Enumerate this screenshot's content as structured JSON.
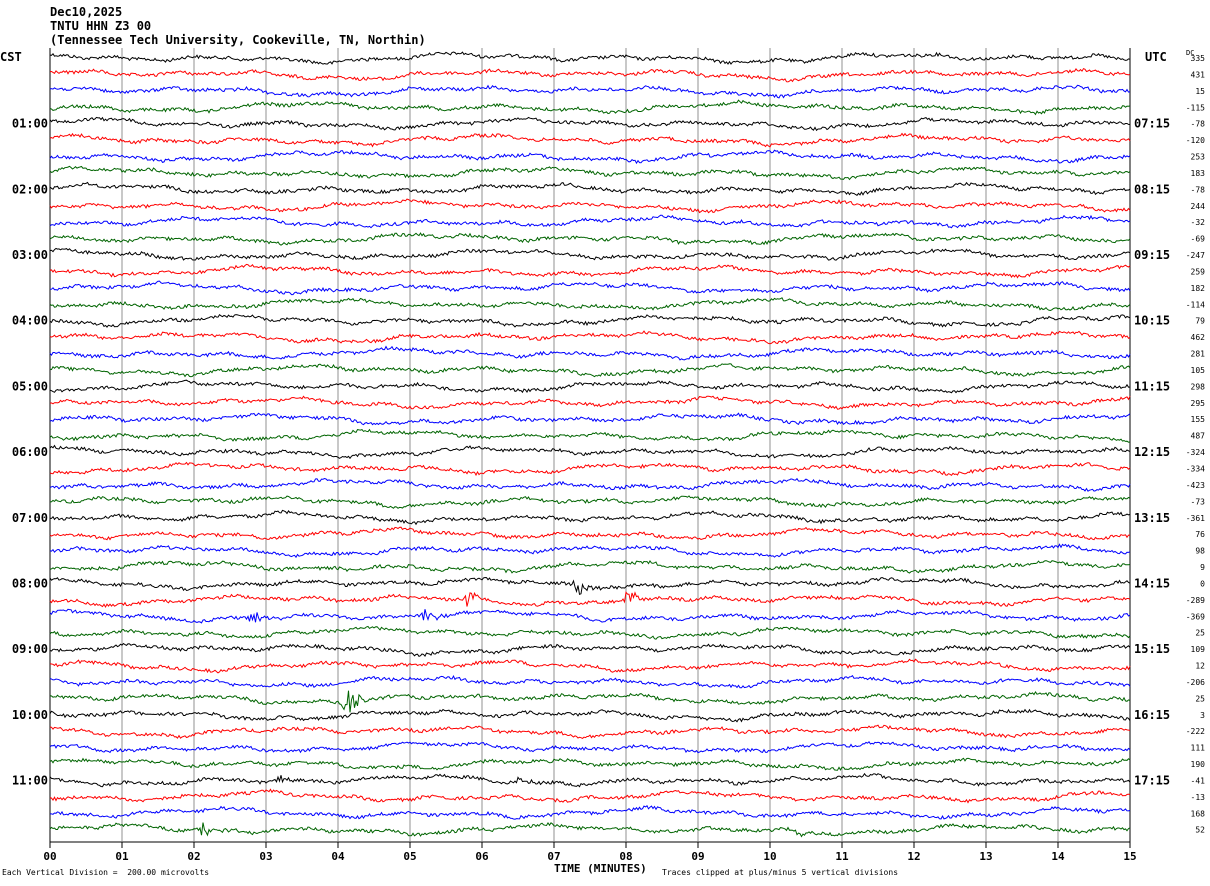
{
  "header": {
    "date": "Dec10,2025",
    "station": "TNTU HHN Z3 00",
    "location": "(Tennessee Tech University, Cookeville, TN, Northin)"
  },
  "axis": {
    "left_zone": "CST",
    "right_zone": "UTC",
    "dc_label": "DC",
    "xlabel": "TIME (MINUTES)",
    "footer_left": "Each Vertical Division =  200.00 microvolts",
    "footer_right": "Traces clipped at plus/minus 5 vertical divisions"
  },
  "chart_data": {
    "type": "line",
    "x_ticks": [
      "00",
      "01",
      "02",
      "03",
      "04",
      "05",
      "06",
      "07",
      "08",
      "09",
      "10",
      "11",
      "12",
      "13",
      "14",
      "15"
    ],
    "xlim": [
      0,
      15
    ],
    "grid": true,
    "trace_count": 48,
    "traces_per_hour": 4,
    "minutes_per_trace": 15,
    "trace_colors": [
      "#000000",
      "#ff0000",
      "#0000ff",
      "#006400"
    ],
    "left_hour_labels": [
      "01:00",
      "02:00",
      "03:00",
      "04:00",
      "05:00",
      "06:00",
      "07:00",
      "08:00",
      "09:00",
      "10:00",
      "11:00"
    ],
    "right_hour_labels": [
      "07:15",
      "08:15",
      "09:15",
      "10:15",
      "11:15",
      "12:15",
      "13:15",
      "14:15",
      "15:15",
      "16:15",
      "17:15"
    ],
    "dc_offsets": [
      335,
      431,
      15,
      -115,
      -78,
      -120,
      253,
      183,
      -78,
      244,
      -32,
      -69,
      -247,
      259,
      182,
      -114,
      79,
      462,
      281,
      105,
      298,
      295,
      155,
      487,
      -324,
      -334,
      -423,
      -73,
      -361,
      76,
      98,
      9,
      0,
      -289,
      -369,
      25,
      109,
      12,
      -206,
      25,
      3,
      -222,
      111,
      190,
      -41,
      -13,
      168,
      52
    ],
    "events": [
      {
        "trace": 32,
        "minute": 7.3,
        "amplitude": "moderate"
      },
      {
        "trace": 33,
        "minute": 5.8,
        "amplitude": "moderate"
      },
      {
        "trace": 33,
        "minute": 8.0,
        "amplitude": "moderate"
      },
      {
        "trace": 34,
        "minute": 2.8,
        "amplitude": "moderate"
      },
      {
        "trace": 34,
        "minute": 5.2,
        "amplitude": "moderate"
      },
      {
        "trace": 39,
        "minute": 4.1,
        "amplitude": "large"
      },
      {
        "trace": 44,
        "minute": 3.2,
        "amplitude": "small"
      },
      {
        "trace": 44,
        "minute": 6.5,
        "amplitude": "small"
      },
      {
        "trace": 47,
        "minute": 2.1,
        "amplitude": "moderate"
      },
      {
        "trace": 47,
        "minute": 10.4,
        "amplitude": "small"
      }
    ]
  }
}
